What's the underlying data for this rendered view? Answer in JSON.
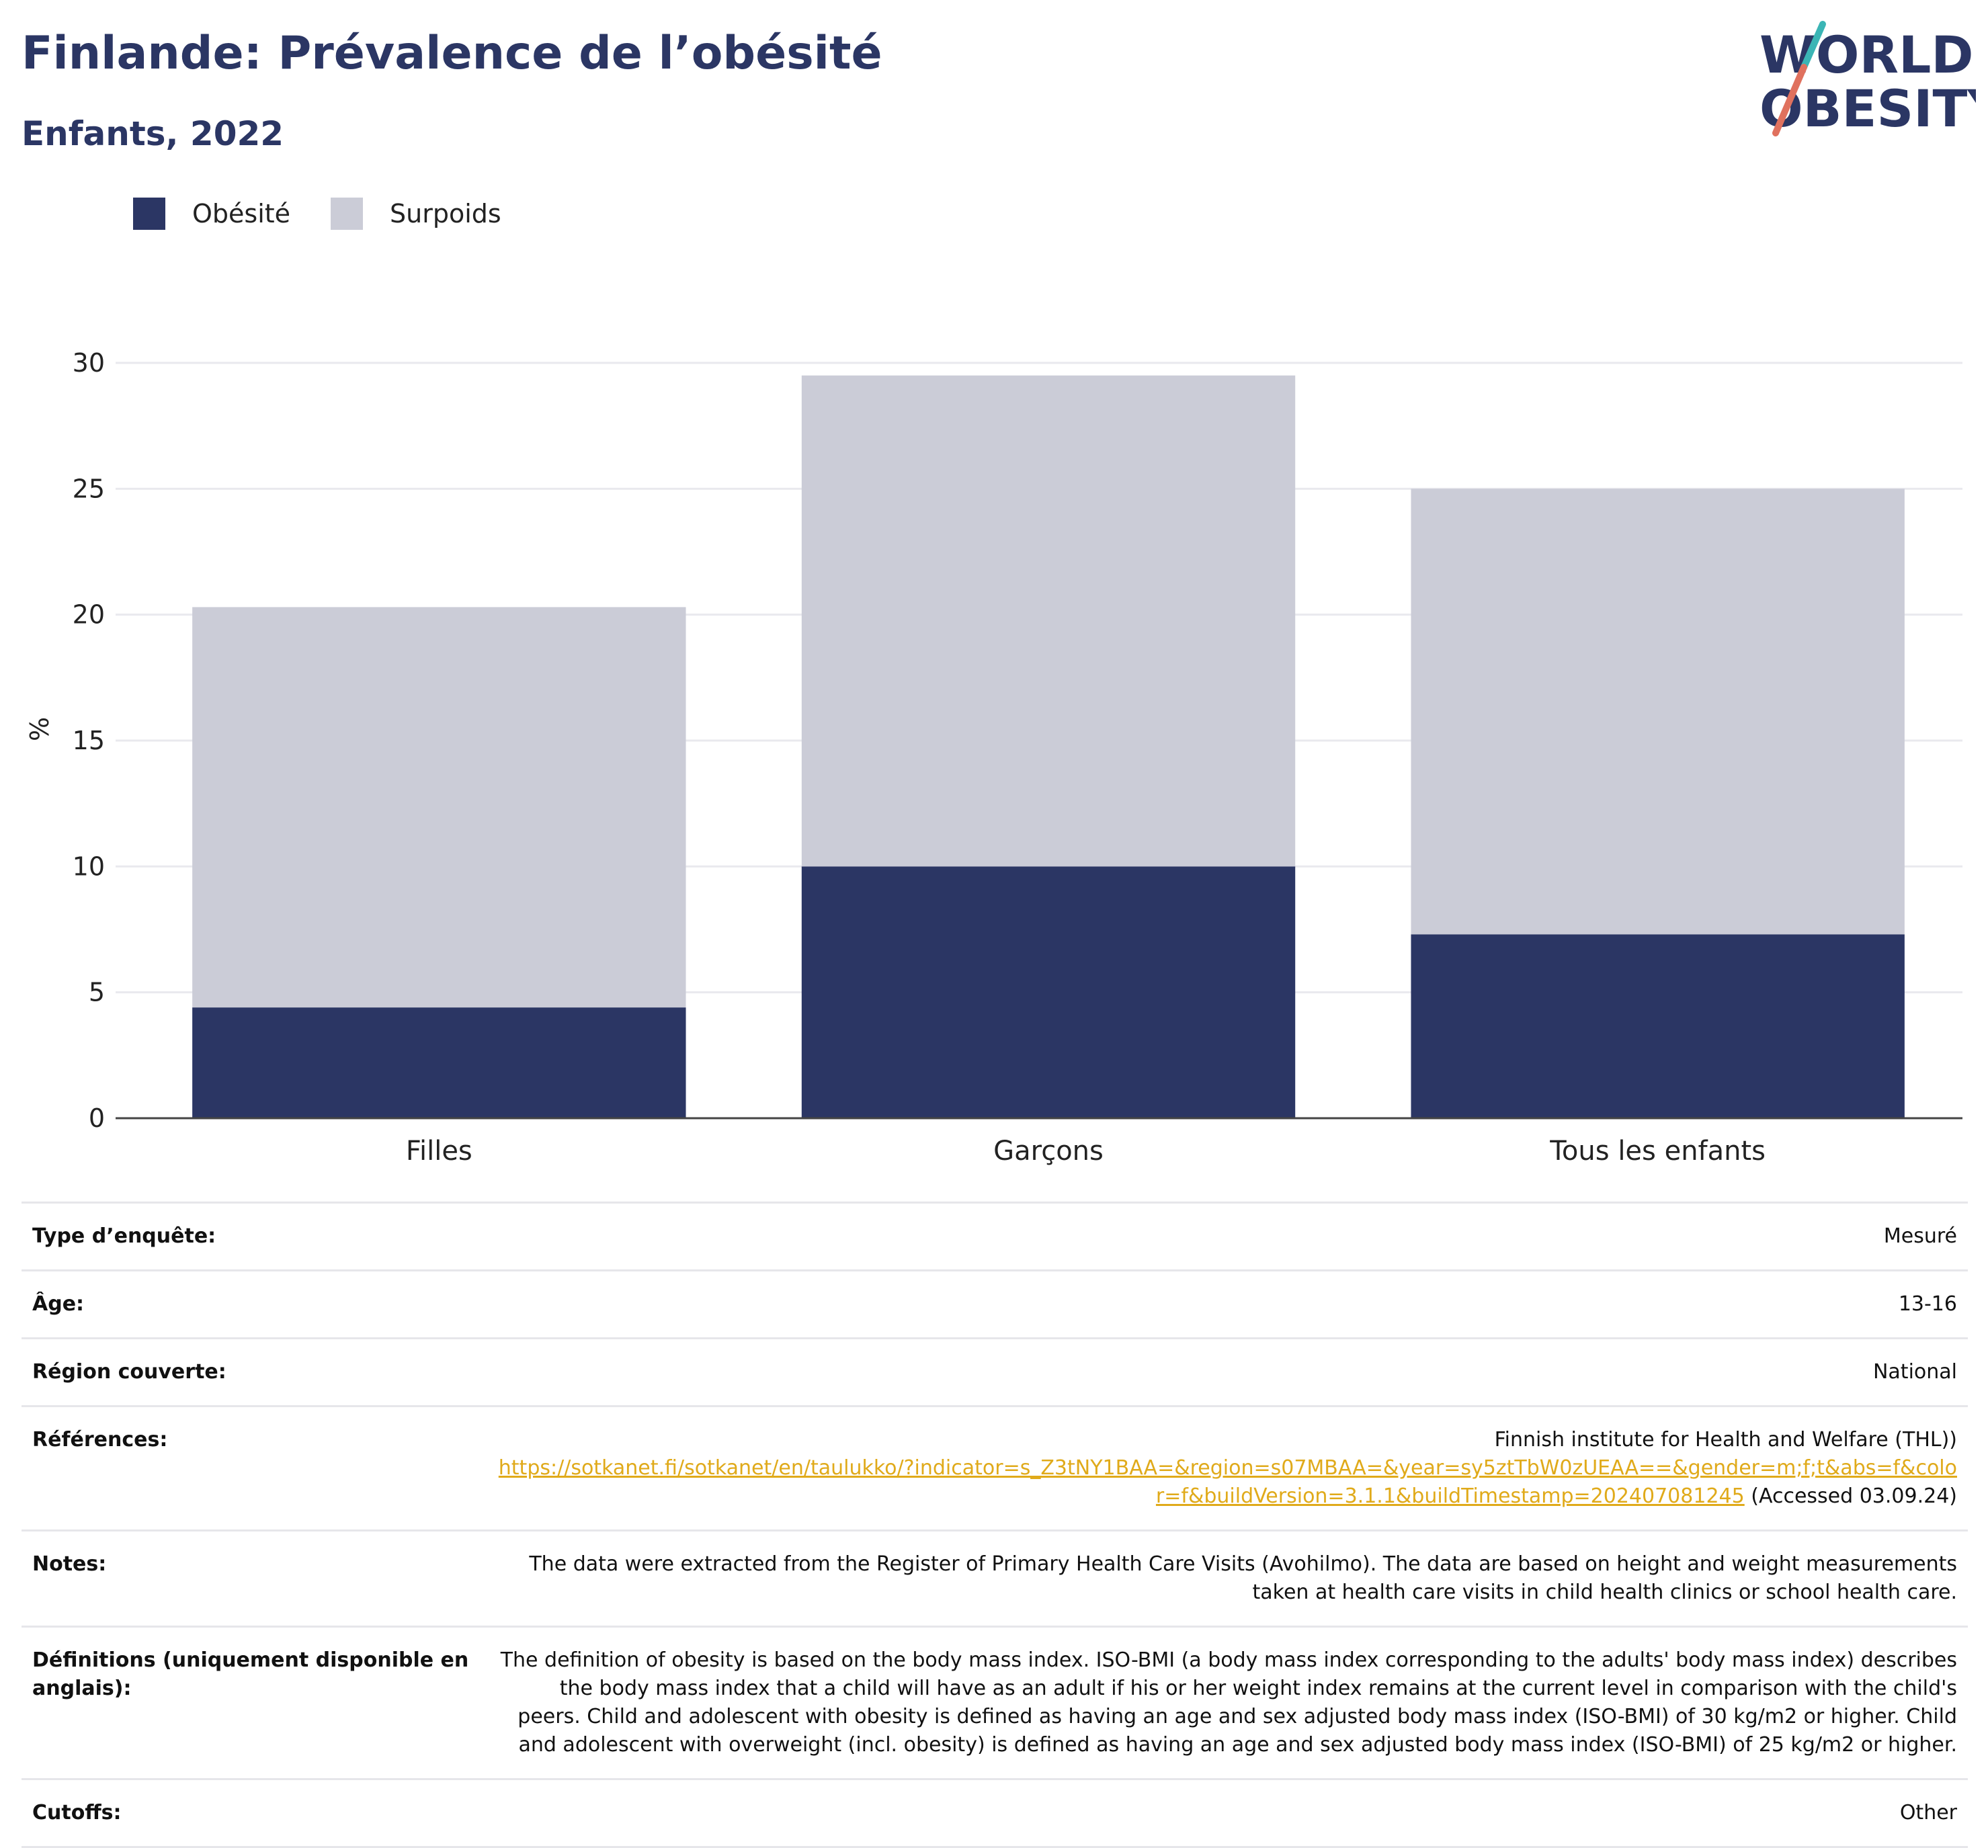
{
  "header": {
    "title": "Finlande: Prévalence de l’obésité",
    "subtitle": "Enfants, 2022"
  },
  "logo": {
    "line1": "WORLD",
    "line2": "OBESITY"
  },
  "colors": {
    "obesite": "#2b3664",
    "surpoids": "#cbccd7",
    "title": "#2b3664",
    "link": "#e0aa1a"
  },
  "chart_data": {
    "type": "bar",
    "stacked": true,
    "categories": [
      "Filles",
      "Garçons",
      "Tous les enfants"
    ],
    "series": [
      {
        "name": "Obésité",
        "values": [
          4.4,
          10.0,
          7.3
        ]
      },
      {
        "name": "Surpoids",
        "values": [
          15.9,
          19.5,
          17.7
        ]
      }
    ],
    "totals": [
      20.3,
      29.5,
      25.0
    ],
    "ylabel": "%",
    "ylim": [
      0,
      30
    ],
    "yticks": [
      0,
      5,
      10,
      15,
      20,
      25,
      30
    ],
    "grid": true,
    "legend_position": "top-left"
  },
  "meta": {
    "survey_type": {
      "label": "Type d’enquête:",
      "value": "Mesuré"
    },
    "age": {
      "label": "Âge:",
      "value": "13-16"
    },
    "region": {
      "label": "Région couverte:",
      "value": "National"
    },
    "references": {
      "label": "Références:",
      "source": "Finnish institute for Health and Welfare (THL))",
      "url": "https://sotkanet.fi/sotkanet/en/taulukko/?indicator=s_Z3tNY1BAA=&region=s07MBAA=&year=sy5ztTbW0zUEAA==&gender=m;f;t&abs=f&color=f&buildVersion=3.1.1&buildTimestamp=202407081245",
      "accessed": " (Accessed 03.09.24)"
    },
    "notes": {
      "label": "Notes:",
      "value": "The data were extracted from the Register of Primary Health Care Visits (Avohilmo). The data are based on height and weight measurements taken at health care visits in child health clinics or school health care."
    },
    "definitions": {
      "label": "Définitions (uniquement disponible en anglais):",
      "value": "The definition of obesity is based on the body mass index. ISO-BMI (a body mass index corresponding to the adults' body mass index) describes the body mass index that a child will have as an adult if his or her weight index remains at the current level in comparison with the child's peers. Child and adolescent with obesity is defined as having an age and sex adjusted body mass index (ISO-BMI) of 30 kg/m2 or higher. Child and adolescent with overweight (incl. obesity) is defined as having an age and sex adjusted body mass index (ISO-BMI) of 25 kg/m2 or higher."
    },
    "cutoffs": {
      "label": "Cutoffs:",
      "value": "Other"
    }
  }
}
